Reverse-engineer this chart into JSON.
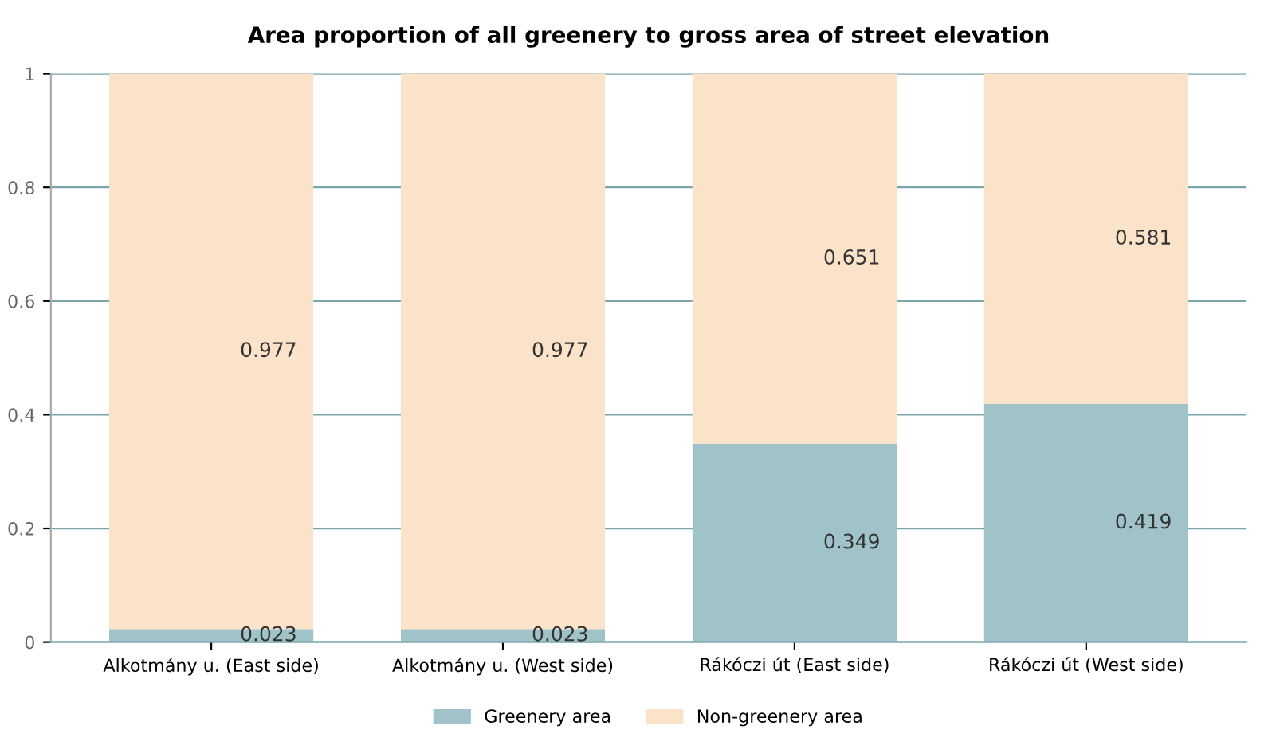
{
  "chart_data": {
    "type": "bar",
    "title": "Area proportion of all greenery to gross area of street elevation",
    "categories": [
      "Alkotmány u. (East side)",
      "Alkotmány u. (West side)",
      "Rákóczi út (East side)",
      "Rákóczi út (West side)"
    ],
    "stacked": true,
    "series": [
      {
        "name": "Greenery area",
        "color": "#a0c3c9",
        "values": [
          0.023,
          0.023,
          0.349,
          0.419
        ]
      },
      {
        "name": "Non-greenery area",
        "color": "#fbe3ca",
        "values": [
          0.977,
          0.977,
          0.651,
          0.581
        ]
      }
    ],
    "data_labels": true,
    "ylim": [
      0,
      1
    ],
    "yticks": [
      0,
      0.2,
      0.4,
      0.6,
      0.8,
      1
    ],
    "grid": "y",
    "legend": "bottom"
  }
}
